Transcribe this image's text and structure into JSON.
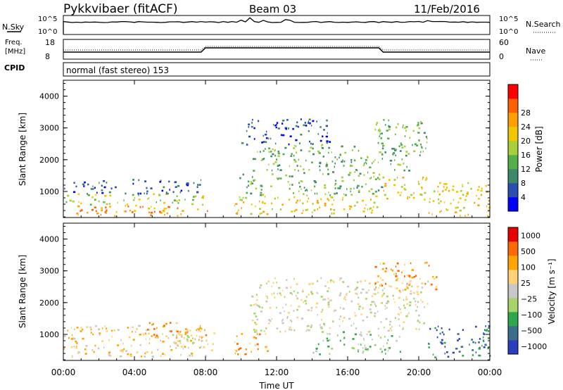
{
  "header": {
    "station": "Pykkvibaer (fitACF)",
    "beam": "Beam 03",
    "date": "11/Feb/2016"
  },
  "nsky_panel": {
    "left_label": "N.Sky",
    "right_label": "N.Search",
    "left_ticks": [
      "10^5",
      "10^0"
    ],
    "right_ticks": [
      "10^5",
      "10^0"
    ]
  },
  "freq_panel": {
    "left_label_line1": "Freq.",
    "left_label_line2": "[MHz]",
    "right_label": "Nave",
    "left_ticks": [
      "18",
      "8"
    ],
    "right_ticks": [
      "60",
      "0"
    ]
  },
  "cpid": {
    "label": "CPID",
    "value": "normal (fast stereo) 153"
  },
  "colors": {
    "power_scale": [
      "#0000ff",
      "#2b4fb0",
      "#3d8a6a",
      "#55b04a",
      "#a8cf3c",
      "#f0c800",
      "#ffa000",
      "#ff6000",
      "#ff0000"
    ],
    "velocity_scale": [
      "#e80000",
      "#ff6a00",
      "#ffa500",
      "#ffd27a",
      "#c8c8c8",
      "#a4d46a",
      "#2ea84a",
      "#3a6e8c",
      "#2a3ec0"
    ]
  },
  "chart_data": [
    {
      "type": "heatmap",
      "title": "",
      "xlabel": "Time UT",
      "ylabel": "Slant Range [km]",
      "ylim": [
        180,
        4500
      ],
      "x_ticks": [
        "00:00",
        "04:00",
        "08:00",
        "12:00",
        "16:00",
        "20:00",
        "00:00"
      ],
      "y_ticks": [
        "1000",
        "2000",
        "3000",
        "4000"
      ],
      "colorbar": {
        "label": "Power [dB]",
        "ticks": [
          "4",
          "8",
          "12",
          "16",
          "20",
          "24",
          "28"
        ]
      },
      "regions": [
        {
          "t0": 0.0,
          "t1": 8.3,
          "r0": 250,
          "r1": 600,
          "level": 6
        },
        {
          "t0": 0.0,
          "t1": 8.0,
          "r0": 600,
          "r1": 950,
          "level": 4
        },
        {
          "t0": 0.0,
          "t1": 7.8,
          "r0": 950,
          "r1": 1400,
          "level": 1
        },
        {
          "t0": 9.6,
          "t1": 17.8,
          "r0": 300,
          "r1": 900,
          "level": 5
        },
        {
          "t0": 9.6,
          "t1": 18.0,
          "r0": 900,
          "r1": 1600,
          "level": 3
        },
        {
          "t0": 10.5,
          "t1": 19.5,
          "r0": 1600,
          "r1": 2500,
          "level": 3
        },
        {
          "t0": 10.0,
          "t1": 15.0,
          "r0": 2500,
          "r1": 3300,
          "level": 1
        },
        {
          "t0": 17.5,
          "t1": 20.5,
          "r0": 2100,
          "r1": 3300,
          "level": 3
        },
        {
          "t0": 18.0,
          "t1": 20.5,
          "r0": 700,
          "r1": 1500,
          "level": 5
        },
        {
          "t0": 20.5,
          "t1": 24.0,
          "r0": 250,
          "r1": 1300,
          "level": 5
        }
      ]
    },
    {
      "type": "heatmap",
      "title": "",
      "xlabel": "Time UT",
      "ylabel": "Slant Range [km]",
      "ylim": [
        180,
        4500
      ],
      "x_ticks": [
        "00:00",
        "04:00",
        "08:00",
        "12:00",
        "16:00",
        "20:00",
        "00:00"
      ],
      "y_ticks": [
        "1000",
        "2000",
        "3000",
        "4000"
      ],
      "colorbar": {
        "label": "Velocity [m s⁻¹]",
        "ticks": [
          "1000",
          "500",
          "100",
          "25",
          "−25",
          "−100",
          "−500",
          "−1000"
        ]
      },
      "regions": [
        {
          "t0": 0.0,
          "t1": 8.0,
          "r0": 300,
          "r1": 1300,
          "level": 3
        },
        {
          "t0": 4.5,
          "t1": 8.0,
          "r0": 900,
          "r1": 1400,
          "level": 2
        },
        {
          "t0": 6.0,
          "t1": 8.5,
          "r0": 500,
          "r1": 1100,
          "level": 4
        },
        {
          "t0": 9.6,
          "t1": 11.5,
          "r0": 400,
          "r1": 1200,
          "level": 2
        },
        {
          "t0": 10.5,
          "t1": 20.5,
          "r0": 1100,
          "r1": 2800,
          "level": 4
        },
        {
          "t0": 14.0,
          "t1": 19.0,
          "r0": 400,
          "r1": 1100,
          "level": 5
        },
        {
          "t0": 17.5,
          "t1": 21.0,
          "r0": 2400,
          "r1": 3300,
          "level": 2
        },
        {
          "t0": 20.5,
          "t1": 24.0,
          "r0": 300,
          "r1": 1300,
          "level": 7
        }
      ]
    }
  ]
}
